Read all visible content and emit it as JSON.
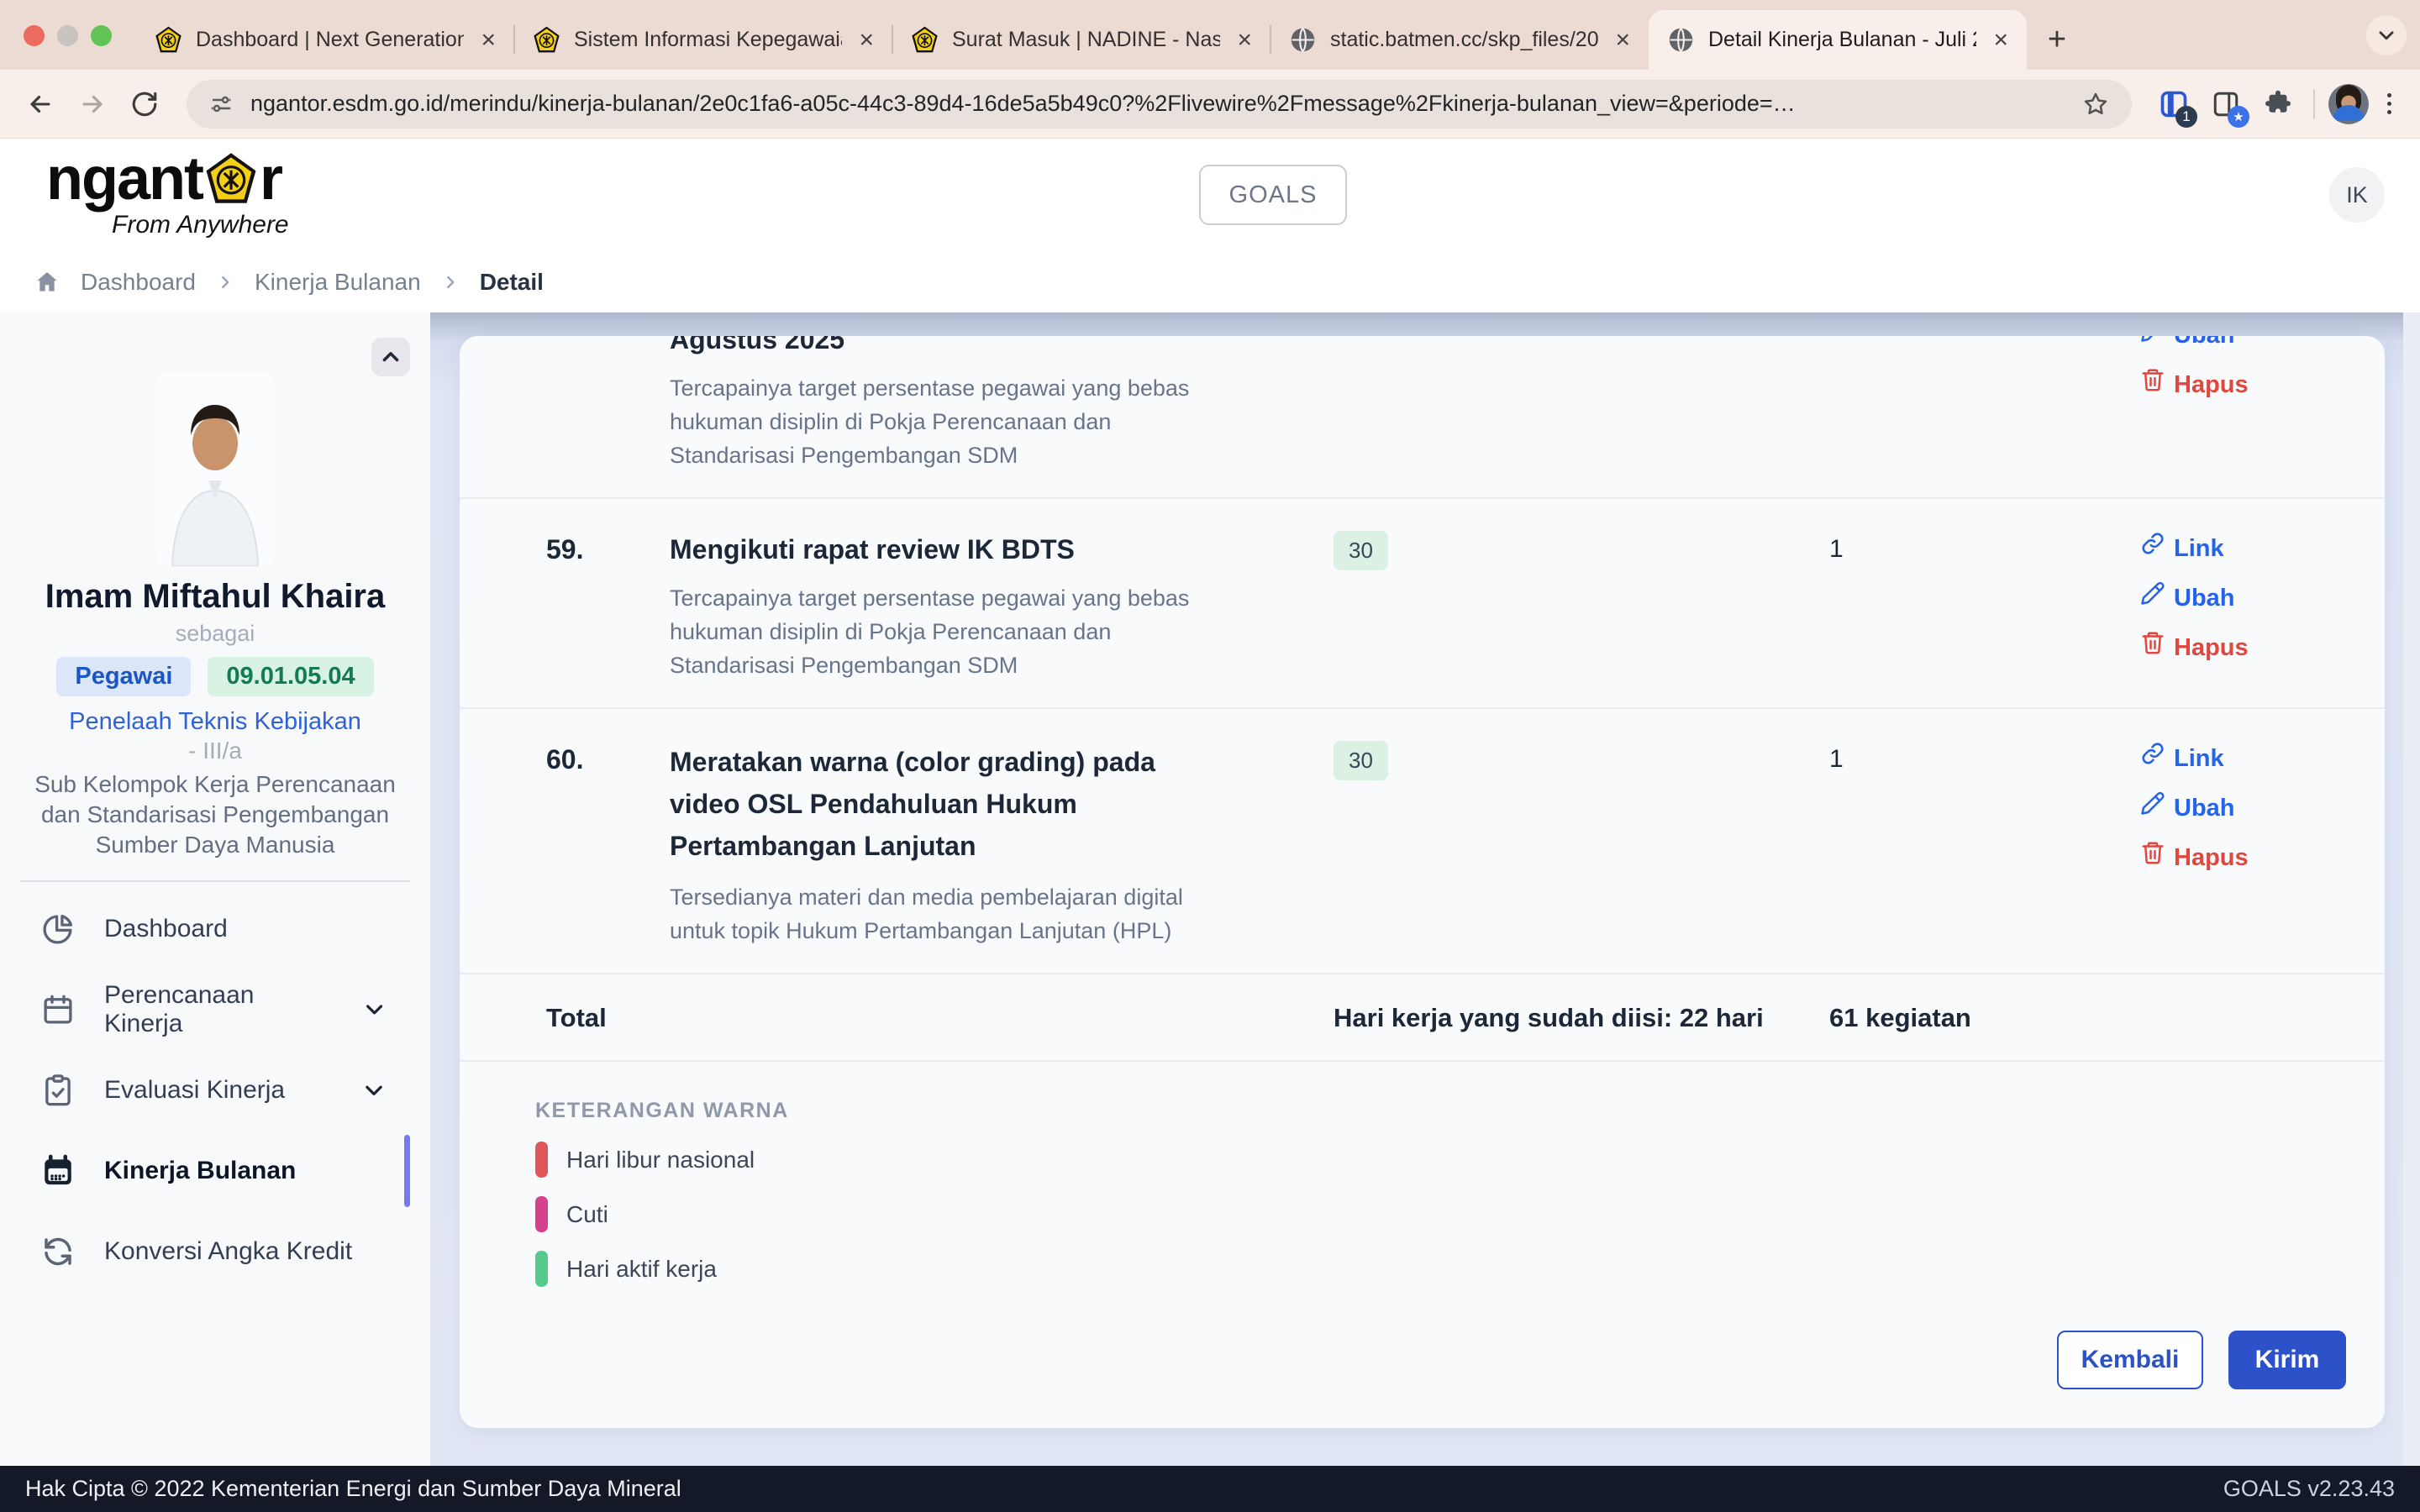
{
  "browser": {
    "tabs": [
      {
        "title": "Dashboard | Next Generation",
        "favicon": "esdm-emblem-icon",
        "active": false
      },
      {
        "title": "Sistem Informasi Kepegawaia",
        "favicon": "esdm-emblem-icon",
        "active": false
      },
      {
        "title": "Surat Masuk | NADINE - Nask",
        "favicon": "esdm-emblem-icon",
        "active": false
      },
      {
        "title": "static.batmen.cc/skp_files/20",
        "favicon": "globe-icon",
        "active": false
      },
      {
        "title": "Detail Kinerja Bulanan - Juli 2",
        "favicon": "globe-icon",
        "active": true
      }
    ],
    "url": "ngantor.esdm.go.id/merindu/kinerja-bulanan/2e0c1fa6-a05c-44c3-89d4-16de5a5b49c0?%2Flivewire%2Fmessage%2Fkinerja-bulanan_view=&periode=…",
    "extension_badge": "1",
    "extension_star_badge": "★"
  },
  "header": {
    "logo_pre": "ngant",
    "logo_post": "r",
    "logo_tagline": "From Anywhere",
    "goals_button": "GOALS",
    "avatar_initials": "IK"
  },
  "breadcrumb": {
    "items": [
      "Dashboard",
      "Kinerja Bulanan"
    ],
    "current": "Detail"
  },
  "sidebar": {
    "profile": {
      "name": "Imam Miftahul Khaira",
      "as_label": "sebagai",
      "role_badge": "Pegawai",
      "code_badge": "09.01.05.04",
      "position": "Penelaah Teknis Kebijakan",
      "grade": "- III/a",
      "unit": "Sub Kelompok Kerja Perencanaan dan Standarisasi Pengembangan Sumber Daya Manusia"
    },
    "menu": [
      {
        "label": "Dashboard",
        "icon": "pie-chart-icon",
        "active": false,
        "expandable": false
      },
      {
        "label": "Perencanaan Kinerja",
        "icon": "calendar-icon",
        "active": false,
        "expandable": true
      },
      {
        "label": "Evaluasi Kinerja",
        "icon": "clipboard-check-icon",
        "active": false,
        "expandable": true
      },
      {
        "label": "Kinerja Bulanan",
        "icon": "calendar-solid-icon",
        "active": true,
        "expandable": false
      },
      {
        "label": "Konversi Angka Kredit",
        "icon": "sync-icon",
        "active": false,
        "expandable": false
      }
    ]
  },
  "table": {
    "rows": [
      {
        "number": "",
        "title": "Agustus 2025",
        "description": "Tercapainya target persentase pegawai yang bebas hukuman disiplin di Pokja Perencanaan dan Standarisasi Pengembangan SDM",
        "badge": "",
        "count": "",
        "partial": true,
        "actions": [
          "edit",
          "delete"
        ]
      },
      {
        "number": "59.",
        "title": "Mengikuti rapat review IK BDTS",
        "description": "Tercapainya target persentase pegawai yang bebas hukuman disiplin di Pokja Perencanaan dan Standarisasi Pengembangan SDM",
        "badge": "30",
        "count": "1",
        "partial": false,
        "actions": [
          "link",
          "edit",
          "delete"
        ]
      },
      {
        "number": "60.",
        "title": "Meratakan warna (color grading) pada video OSL Pendahuluan Hukum Pertambangan Lanjutan",
        "description": "Tersedianya materi dan media pembelajaran digital untuk topik Hukum Pertambangan Lanjutan (HPL)",
        "badge": "30",
        "count": "1",
        "partial": false,
        "actions": [
          "link",
          "edit",
          "delete"
        ]
      }
    ],
    "action_labels": {
      "link": "Link",
      "edit": "Ubah",
      "delete": "Hapus"
    },
    "total_label": "Total",
    "total_days": "Hari kerja yang sudah diisi: 22 hari",
    "total_activities": "61 kegiatan"
  },
  "legend": {
    "title": "KETERANGAN WARNA",
    "items": [
      {
        "label": "Hari libur nasional",
        "color": "#e0595a"
      },
      {
        "label": "Cuti",
        "color": "#d6418c"
      },
      {
        "label": "Hari aktif kerja",
        "color": "#56c98d"
      }
    ]
  },
  "card_buttons": {
    "back": "Kembali",
    "submit": "Kirim"
  },
  "footer": {
    "copyright": "Hak Cipta © 2022 Kementerian Energi dan Sumber Daya Mineral",
    "version": "GOALS v2.23.43"
  }
}
